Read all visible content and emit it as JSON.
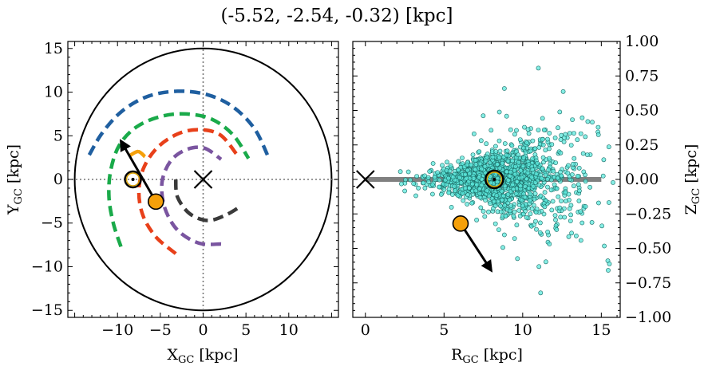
{
  "title": "(-5.52, -2.54, -0.32) [kpc]",
  "chart_data": [
    {
      "type": "line",
      "panel": "left",
      "xlabel": "X_GC [kpc]",
      "ylabel": "Y_GC [kpc]",
      "xlim": [
        -15.8,
        15.8
      ],
      "ylim": [
        -15.8,
        15.8
      ],
      "xticks": [
        -10,
        -5,
        0,
        5,
        10
      ],
      "yticks": [
        -15,
        -10,
        -5,
        0,
        5,
        10,
        15
      ],
      "boundary_circle_radius": 15,
      "galactic_center": [
        0,
        0
      ],
      "sun": [
        -8.2,
        0.0
      ],
      "star": [
        -5.52,
        -2.54
      ],
      "velocity_arrow": {
        "from": [
          -5.52,
          -2.54
        ],
        "to": [
          -9.6,
          4.4
        ]
      },
      "colors": {
        "blue": "#1f5fa0",
        "green": "#1aaa4a",
        "red": "#e8401a",
        "purple": "#7a55a0",
        "gray": "#3a3a3a",
        "orange": "#f5a00a"
      },
      "series": [
        {
          "color": "#1f5fa0",
          "points": [
            [
              -13.3,
              2.8
            ],
            [
              -11.8,
              5.3
            ],
            [
              -9.5,
              7.8
            ],
            [
              -6.5,
              9.5
            ],
            [
              -3.0,
              10.1
            ],
            [
              0.5,
              9.7
            ],
            [
              3.5,
              8.3
            ],
            [
              6.0,
              5.8
            ],
            [
              7.6,
              2.6
            ]
          ]
        },
        {
          "color": "#1aaa4a",
          "points": [
            [
              -9.6,
              -7.7
            ],
            [
              -10.5,
              -5.0
            ],
            [
              -11.0,
              -2.0
            ],
            [
              -10.8,
              1.0
            ],
            [
              -9.8,
              3.9
            ],
            [
              -7.8,
              6.0
            ],
            [
              -5.0,
              7.2
            ],
            [
              -2.0,
              7.5
            ],
            [
              1.0,
              6.9
            ],
            [
              3.5,
              5.1
            ],
            [
              5.3,
              2.4
            ]
          ]
        },
        {
          "color": "#e8401a",
          "points": [
            [
              -3.2,
              -8.5
            ],
            [
              -5.5,
              -6.6
            ],
            [
              -7.0,
              -4.2
            ],
            [
              -7.5,
              -1.5
            ],
            [
              -7.0,
              1.2
            ],
            [
              -5.4,
              3.6
            ],
            [
              -3.0,
              5.2
            ],
            [
              -0.5,
              5.7
            ],
            [
              2.0,
              5.1
            ],
            [
              3.9,
              2.9
            ]
          ]
        },
        {
          "color": "#7a55a0",
          "points": [
            [
              2.1,
              -7.4
            ],
            [
              -0.5,
              -7.3
            ],
            [
              -3.0,
              -5.8
            ],
            [
              -4.5,
              -3.2
            ],
            [
              -4.8,
              -0.3
            ],
            [
              -3.8,
              2.1
            ],
            [
              -2.0,
              3.4
            ],
            [
              0.1,
              3.6
            ],
            [
              2.1,
              2.3
            ]
          ]
        },
        {
          "color": "#3a3a3a",
          "points": [
            [
              -3.2,
              0.0
            ],
            [
              -3.0,
              -2.0
            ],
            [
              -1.6,
              -3.9
            ],
            [
              0.5,
              -4.7
            ],
            [
              2.6,
              -4.1
            ],
            [
              4.5,
              -3.0
            ]
          ]
        }
      ]
    },
    {
      "type": "scatter",
      "panel": "right",
      "xlabel": "R_GC [kpc]",
      "ylabel": "Z_GC [kpc]",
      "xlim": [
        -0.8,
        16.2
      ],
      "ylim": [
        -1.0,
        1.0
      ],
      "xticks": [
        0,
        5,
        10,
        15
      ],
      "yticks": [
        -1.0,
        -0.75,
        -0.5,
        -0.25,
        0.0,
        0.25,
        0.5,
        0.75,
        1.0
      ],
      "ytick_labels": [
        "−1.00",
        "−0.75",
        "−0.50",
        "−0.25",
        "0.00",
        "0.25",
        "0.50",
        "0.75",
        "1.00"
      ],
      "galactic_center": [
        0,
        0
      ],
      "sun": [
        8.2,
        0.0
      ],
      "star": [
        6.05,
        -0.32
      ],
      "velocity_arrow": {
        "from": [
          6.05,
          -0.32
        ],
        "to": [
          8.0,
          -0.66
        ]
      },
      "disk_line": {
        "x": [
          0,
          15
        ],
        "y": 0
      },
      "point_color": "#5ce8dc",
      "n_points": 1500
    }
  ]
}
